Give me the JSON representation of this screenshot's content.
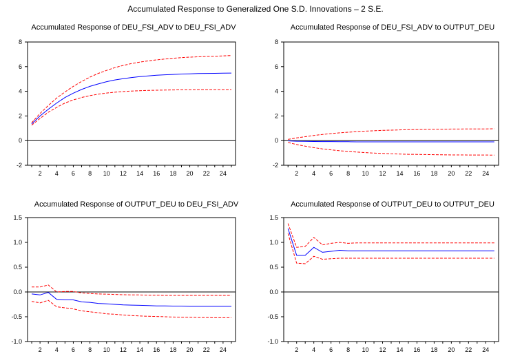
{
  "figure_title": "Accumulated Response to Generalized One S.D. Innovations – 2 S.E.",
  "chart_data": [
    {
      "type": "line",
      "title": "Accumulated Response of DEU_FSI_ADV to DEU_FSI_ADV",
      "x": [
        1,
        2,
        3,
        4,
        5,
        6,
        7,
        8,
        9,
        10,
        11,
        12,
        13,
        14,
        15,
        16,
        17,
        18,
        19,
        20,
        21,
        22,
        23,
        24,
        25
      ],
      "xticks": [
        2,
        4,
        6,
        8,
        10,
        12,
        14,
        16,
        18,
        20,
        22,
        24
      ],
      "ylim": [
        -2,
        8
      ],
      "yticks": [
        -2,
        0,
        2,
        4,
        6,
        8
      ],
      "ytick_labels": [
        "-2",
        "0",
        "2",
        "4",
        "6",
        "8"
      ],
      "series": [
        {
          "role": "response",
          "color": "#0000ff",
          "dash": "solid",
          "values": [
            1.35,
            2.0,
            2.55,
            3.05,
            3.5,
            3.85,
            4.15,
            4.4,
            4.6,
            4.78,
            4.92,
            5.03,
            5.12,
            5.19,
            5.25,
            5.3,
            5.34,
            5.37,
            5.4,
            5.42,
            5.44,
            5.45,
            5.46,
            5.47,
            5.48
          ]
        },
        {
          "role": "upper band",
          "color": "#ff0000",
          "dash": "dashed",
          "values": [
            1.45,
            2.2,
            2.85,
            3.45,
            3.95,
            4.4,
            4.8,
            5.15,
            5.45,
            5.7,
            5.92,
            6.1,
            6.25,
            6.37,
            6.47,
            6.55,
            6.62,
            6.68,
            6.73,
            6.77,
            6.8,
            6.83,
            6.85,
            6.87,
            6.9
          ]
        },
        {
          "role": "lower band",
          "color": "#ff0000",
          "dash": "dashed",
          "values": [
            1.25,
            1.8,
            2.3,
            2.7,
            3.05,
            3.3,
            3.5,
            3.65,
            3.77,
            3.86,
            3.93,
            3.98,
            4.02,
            4.05,
            4.07,
            4.09,
            4.1,
            4.11,
            4.12,
            4.12,
            4.13,
            4.13,
            4.13,
            4.13,
            4.13
          ]
        }
      ]
    },
    {
      "type": "line",
      "title": "Accumulated Response of DEU_FSI_ADV to OUTPUT_DEU",
      "x": [
        1,
        2,
        3,
        4,
        5,
        6,
        7,
        8,
        9,
        10,
        11,
        12,
        13,
        14,
        15,
        16,
        17,
        18,
        19,
        20,
        21,
        22,
        23,
        24,
        25
      ],
      "xticks": [
        2,
        4,
        6,
        8,
        10,
        12,
        14,
        16,
        18,
        20,
        22,
        24
      ],
      "ylim": [
        -2,
        8
      ],
      "yticks": [
        -2,
        0,
        2,
        4,
        6,
        8
      ],
      "ytick_labels": [
        "-2",
        "0",
        "2",
        "4",
        "6",
        "8"
      ],
      "series": [
        {
          "role": "response",
          "color": "#0000ff",
          "dash": "solid",
          "values": [
            -0.02,
            -0.05,
            -0.06,
            -0.07,
            -0.08,
            -0.08,
            -0.09,
            -0.09,
            -0.1,
            -0.1,
            -0.1,
            -0.1,
            -0.1,
            -0.1,
            -0.1,
            -0.1,
            -0.1,
            -0.1,
            -0.1,
            -0.1,
            -0.1,
            -0.1,
            -0.1,
            -0.1,
            -0.1
          ]
        },
        {
          "role": "upper band",
          "color": "#ff0000",
          "dash": "dashed",
          "values": [
            0.1,
            0.22,
            0.32,
            0.42,
            0.5,
            0.57,
            0.63,
            0.68,
            0.73,
            0.77,
            0.8,
            0.83,
            0.85,
            0.87,
            0.89,
            0.9,
            0.91,
            0.92,
            0.93,
            0.94,
            0.94,
            0.95,
            0.95,
            0.95,
            0.96
          ]
        },
        {
          "role": "lower band",
          "color": "#ff0000",
          "dash": "dashed",
          "values": [
            -0.15,
            -0.32,
            -0.45,
            -0.57,
            -0.67,
            -0.75,
            -0.82,
            -0.88,
            -0.93,
            -0.97,
            -1.01,
            -1.04,
            -1.07,
            -1.09,
            -1.11,
            -1.12,
            -1.13,
            -1.14,
            -1.15,
            -1.16,
            -1.16,
            -1.17,
            -1.17,
            -1.17,
            -1.18
          ]
        }
      ]
    },
    {
      "type": "line",
      "title": "Accumulated Response of OUTPUT_DEU to DEU_FSI_ADV",
      "x": [
        1,
        2,
        3,
        4,
        5,
        6,
        7,
        8,
        9,
        10,
        11,
        12,
        13,
        14,
        15,
        16,
        17,
        18,
        19,
        20,
        21,
        22,
        23,
        24,
        25
      ],
      "xticks": [
        2,
        4,
        6,
        8,
        10,
        12,
        14,
        16,
        18,
        20,
        22,
        24
      ],
      "ylim": [
        -1.0,
        1.5
      ],
      "yticks": [
        -1.0,
        -0.5,
        0.0,
        0.5,
        1.0,
        1.5
      ],
      "ytick_labels": [
        "-1.0",
        "-0.5",
        "0.0",
        "0.5",
        "1.0",
        "1.5"
      ],
      "series": [
        {
          "role": "response",
          "color": "#0000ff",
          "dash": "solid",
          "values": [
            -0.04,
            -0.06,
            -0.01,
            -0.15,
            -0.16,
            -0.16,
            -0.2,
            -0.21,
            -0.23,
            -0.24,
            -0.25,
            -0.26,
            -0.265,
            -0.27,
            -0.275,
            -0.28,
            -0.28,
            -0.285,
            -0.285,
            -0.29,
            -0.29,
            -0.29,
            -0.29,
            -0.29,
            -0.29
          ]
        },
        {
          "role": "upper band",
          "color": "#ff0000",
          "dash": "dashed",
          "values": [
            0.1,
            0.1,
            0.14,
            0.0,
            0.01,
            0.01,
            -0.02,
            -0.03,
            -0.04,
            -0.045,
            -0.05,
            -0.055,
            -0.06,
            -0.06,
            -0.065,
            -0.065,
            -0.07,
            -0.07,
            -0.07,
            -0.07,
            -0.07,
            -0.07,
            -0.07,
            -0.07,
            -0.07
          ]
        },
        {
          "role": "lower band",
          "color": "#ff0000",
          "dash": "dashed",
          "values": [
            -0.19,
            -0.22,
            -0.17,
            -0.3,
            -0.32,
            -0.34,
            -0.38,
            -0.4,
            -0.42,
            -0.44,
            -0.45,
            -0.465,
            -0.475,
            -0.485,
            -0.49,
            -0.495,
            -0.5,
            -0.505,
            -0.51,
            -0.51,
            -0.515,
            -0.515,
            -0.52,
            -0.52,
            -0.52
          ]
        }
      ]
    },
    {
      "type": "line",
      "title": "Accumulated Response of OUTPUT_DEU to OUTPUT_DEU",
      "x": [
        1,
        2,
        3,
        4,
        5,
        6,
        7,
        8,
        9,
        10,
        11,
        12,
        13,
        14,
        15,
        16,
        17,
        18,
        19,
        20,
        21,
        22,
        23,
        24,
        25
      ],
      "xticks": [
        2,
        4,
        6,
        8,
        10,
        12,
        14,
        16,
        18,
        20,
        22,
        24
      ],
      "ylim": [
        -1.0,
        1.5
      ],
      "yticks": [
        -1.0,
        -0.5,
        0.0,
        0.5,
        1.0,
        1.5
      ],
      "ytick_labels": [
        "-1.0",
        "-0.5",
        "0.0",
        "0.5",
        "1.0",
        "1.5"
      ],
      "series": [
        {
          "role": "response",
          "color": "#0000ff",
          "dash": "solid",
          "values": [
            1.28,
            0.74,
            0.74,
            0.9,
            0.8,
            0.82,
            0.84,
            0.83,
            0.83,
            0.83,
            0.83,
            0.83,
            0.83,
            0.83,
            0.83,
            0.83,
            0.83,
            0.83,
            0.83,
            0.83,
            0.83,
            0.83,
            0.83,
            0.83,
            0.83
          ]
        },
        {
          "role": "upper band",
          "color": "#ff0000",
          "dash": "dashed",
          "values": [
            1.38,
            0.9,
            0.92,
            1.1,
            0.95,
            0.98,
            1.0,
            0.98,
            0.99,
            0.99,
            0.99,
            0.99,
            0.99,
            0.99,
            0.99,
            0.99,
            0.99,
            0.99,
            0.99,
            0.99,
            0.99,
            0.99,
            0.99,
            0.99,
            0.99
          ]
        },
        {
          "role": "lower band",
          "color": "#ff0000",
          "dash": "dashed",
          "values": [
            1.18,
            0.58,
            0.57,
            0.72,
            0.66,
            0.67,
            0.68,
            0.68,
            0.68,
            0.68,
            0.68,
            0.68,
            0.68,
            0.68,
            0.68,
            0.68,
            0.68,
            0.68,
            0.68,
            0.68,
            0.68,
            0.68,
            0.68,
            0.68,
            0.68
          ]
        }
      ]
    }
  ]
}
